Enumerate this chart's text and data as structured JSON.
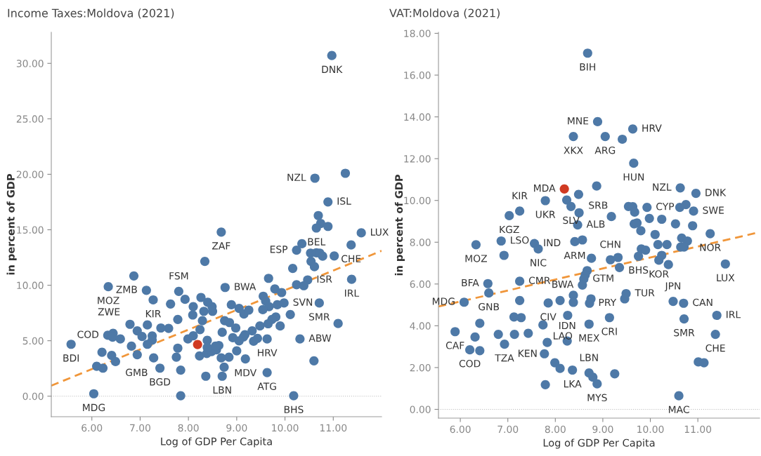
{
  "chart_data": [
    {
      "type": "scatter",
      "title": "Income Taxes:Moldova (2021)",
      "xlabel": "Log of GDP Per Capita",
      "ylabel": "in percent of GDP",
      "xlim": [
        5.16,
        12.0
      ],
      "ylim": [
        -1.85,
        32.8
      ],
      "xticks": [
        {
          "value": 6,
          "label": "6.00"
        },
        {
          "value": 7,
          "label": "7.00"
        },
        {
          "value": 8,
          "label": "8.00"
        },
        {
          "value": 9,
          "label": "9.00"
        },
        {
          "value": 10,
          "label": "10.00"
        },
        {
          "value": 11,
          "label": "11.00"
        }
      ],
      "yticks": [
        {
          "value": 0,
          "label": "0.00"
        },
        {
          "value": 5,
          "label": "5.00"
        },
        {
          "value": 10,
          "label": "10.00"
        },
        {
          "value": 15,
          "label": "15.00"
        },
        {
          "value": 20,
          "label": "20.00"
        },
        {
          "value": 25,
          "label": "25.00"
        },
        {
          "value": 30,
          "label": "30.00"
        }
      ],
      "grid": false,
      "marker": "circle",
      "ref_lines": [
        {
          "axis": "y",
          "value": 0,
          "color": "#bbbbbb",
          "line_style": "dotted"
        }
      ],
      "series": [
        {
          "color": "#4e79a7",
          "x": [
            10.97,
            10.62,
            11.25,
            10.89,
            10.69,
            10.74,
            10.89,
            10.65,
            11.58,
            8.68,
            8.34,
            10.35,
            10.24,
            11.37,
            11.02,
            10.53,
            10.65,
            10.72,
            10.78,
            10.54,
            10.61,
            10.16,
            9.66,
            10.47,
            10.24,
            10.39,
            11.38,
            9.79,
            9.93,
            9.55,
            9.6,
            9.67,
            9.54,
            9.84,
            9.98,
            10.71,
            10.11,
            9.81,
            9.73,
            9.65,
            9.9,
            11.1,
            9.48,
            9.32,
            9.17,
            9.14,
            8.92,
            9.05,
            9.43,
            9.35,
            9.63,
            10.31,
            10.6,
            9.63,
            10.18,
            9.18,
            9.0,
            8.84,
            8.68,
            8.74,
            8.7,
            8.36,
            7.84,
            7.84,
            7.41,
            7.28,
            7.75,
            7.78,
            8.23,
            8.38,
            8.48,
            8.58,
            8.63,
            8.56,
            8.39,
            8.39,
            7.99,
            8.1,
            8.24,
            8.7,
            8.98,
            8.75,
            8.85,
            8.29,
            8.09,
            8.1,
            8.32,
            8.5,
            8.49,
            8.4,
            8.26,
            8.89,
            9.05,
            9.15,
            9.25,
            8.76,
            7.93,
            7.8,
            7.63,
            7.78,
            7.59,
            7.43,
            7.27,
            7.13,
            6.87,
            6.34,
            6.79,
            6.94,
            7.04,
            7.15,
            7.25,
            7.25,
            7.15,
            6.82,
            6.94,
            6.59,
            6.44,
            6.33,
            6.43,
            6.21,
            6.41,
            6.49,
            6.23,
            6.1,
            6.04,
            5.57
          ],
          "values": [
            30.7,
            19.65,
            20.09,
            17.51,
            16.28,
            15.57,
            15.3,
            15.16,
            14.72,
            14.79,
            12.15,
            13.74,
            13.16,
            13.63,
            12.64,
            12.9,
            12.92,
            12.9,
            12.62,
            12.15,
            11.67,
            11.52,
            10.62,
            10.48,
            10.04,
            9.96,
            10.53,
            9.67,
            9.34,
            9.01,
            8.57,
            8.07,
            7.8,
            8.24,
            8.4,
            8.4,
            7.36,
            7.14,
            6.92,
            6.53,
            6.33,
            6.55,
            6.33,
            5.89,
            5.54,
            5.34,
            5.27,
            4.99,
            5.21,
            4.95,
            5.16,
            5.16,
            3.19,
            2.13,
            0.04,
            3.36,
            4.09,
            3.52,
            3.45,
            2.62,
            1.8,
            1.8,
            0.04,
            2.35,
            2.53,
            3.45,
            3.52,
            4.33,
            3.63,
            3.85,
            4.02,
            4.18,
            4.57,
            4.51,
            5.03,
            4.4,
            5.16,
            5.45,
            6.0,
            5.76,
            6.15,
            6.81,
            6.64,
            6.81,
            7.32,
            8.07,
            7.65,
            7.65,
            8.07,
            8.46,
            8.9,
            8.24,
            7.91,
            7.41,
            7.76,
            9.8,
            8.73,
            9.45,
            8.31,
            6.92,
            6.11,
            6.15,
            8.68,
            9.54,
            10.84,
            9.87,
            6.48,
            5.89,
            5.38,
            6.42,
            5.43,
            5.05,
            4.68,
            4.51,
            3.74,
            5.16,
            5.67,
            5.49,
            5.32,
            3.96,
            3.67,
            3.12,
            2.53,
            2.7,
            0.22,
            4.68
          ]
        },
        {
          "color": "#d03a22",
          "x": [
            8.19
          ],
          "values": [
            4.66
          ]
        },
        {
          "type": "line",
          "color": "#f0963a",
          "line_style": "dashed",
          "marker": "none",
          "x": [
            5.16,
            12.0
          ],
          "values": [
            0.95,
            13.1
          ]
        }
      ],
      "annotations": [
        {
          "text": "DNK",
          "x": 10.97,
          "y": 30.7
        },
        {
          "text": "NZL",
          "x": 10.62,
          "y": 19.65
        },
        {
          "text": "ISL",
          "x": 10.89,
          "y": 17.51
        },
        {
          "text": "LUX",
          "x": 11.58,
          "y": 14.72
        },
        {
          "text": "BEL",
          "x": 10.65,
          "y": 15.16
        },
        {
          "text": "ZAF",
          "x": 8.68,
          "y": 14.79
        },
        {
          "text": "ESP",
          "x": 10.24,
          "y": 13.16
        },
        {
          "text": "CHE",
          "x": 11.37,
          "y": 13.63
        },
        {
          "text": "ISR",
          "x": 10.47,
          "y": 10.48
        },
        {
          "text": "IRL",
          "x": 11.38,
          "y": 10.53
        },
        {
          "text": "SVN",
          "x": 9.98,
          "y": 8.4
        },
        {
          "text": "SMR",
          "x": 10.71,
          "y": 8.4
        },
        {
          "text": "ABW",
          "x": 10.31,
          "y": 5.16
        },
        {
          "text": "HRV",
          "x": 9.63,
          "y": 5.16
        },
        {
          "text": "BHS",
          "x": 10.18,
          "y": 0.04
        },
        {
          "text": "ATG",
          "x": 9.63,
          "y": 2.13
        },
        {
          "text": "MDV",
          "x": 9.18,
          "y": 3.36
        },
        {
          "text": "LBN",
          "x": 8.7,
          "y": 1.8
        },
        {
          "text": "BWA",
          "x": 8.76,
          "y": 9.8
        },
        {
          "text": "FSM",
          "x": 7.8,
          "y": 9.45
        },
        {
          "text": "KIR",
          "x": 7.27,
          "y": 8.68
        },
        {
          "text": "ZMB",
          "x": 7.13,
          "y": 9.54
        },
        {
          "text": "MOZ",
          "x": 6.34,
          "y": 9.87
        },
        {
          "text": "ZWE",
          "x": 6.79,
          "y": 6.48
        },
        {
          "text": "COD",
          "x": 6.33,
          "y": 5.49
        },
        {
          "text": "BDI",
          "x": 5.57,
          "y": 4.68
        },
        {
          "text": "MDG",
          "x": 6.04,
          "y": 0.22
        },
        {
          "text": "GMB",
          "x": 6.49,
          "y": 3.12
        },
        {
          "text": "BGD",
          "x": 7.41,
          "y": 2.53
        }
      ]
    },
    {
      "type": "scatter",
      "title": "VAT:Moldova (2021)",
      "xlabel": "Log of GDP Per Capita",
      "ylabel": "in percent of GDP",
      "xlim": [
        5.54,
        12.3
      ],
      "ylim": [
        -0.42,
        18.05
      ],
      "xticks": [
        {
          "value": 6,
          "label": "6.00"
        },
        {
          "value": 7,
          "label": "7.00"
        },
        {
          "value": 8,
          "label": "8.00"
        },
        {
          "value": 9,
          "label": "9.00"
        },
        {
          "value": 10,
          "label": "10.00"
        },
        {
          "value": 11,
          "label": "11.00"
        }
      ],
      "yticks": [
        {
          "value": 0,
          "label": "0.00"
        },
        {
          "value": 2,
          "label": "2.00"
        },
        {
          "value": 4,
          "label": "4.00"
        },
        {
          "value": 6,
          "label": "6.00"
        },
        {
          "value": 8,
          "label": "8.00"
        },
        {
          "value": 10,
          "label": "10.00"
        },
        {
          "value": 12,
          "label": "12.00"
        },
        {
          "value": 14,
          "label": "14.00"
        },
        {
          "value": 16,
          "label": "16.00"
        },
        {
          "value": 18,
          "label": "18.00"
        }
      ],
      "grid": false,
      "marker": "circle",
      "ref_lines": [
        {
          "axis": "y",
          "value": 0,
          "color": "#bbbbbb",
          "line_style": "dotted"
        }
      ],
      "series": [
        {
          "color": "#4e79a7",
          "x": [
            8.68,
            8.89,
            9.63,
            8.38,
            9.05,
            9.41,
            9.65,
            8.87,
            8.49,
            8.24,
            7.79,
            8.33,
            8.5,
            7.25,
            7.03,
            8.47,
            9.18,
            9.54,
            9.63,
            9.67,
            9.93,
            9.98,
            10.24,
            10.63,
            10.96,
            10.75,
            10.62,
            10.91,
            10.53,
            10.89,
            9.66,
            9.72,
            11.26,
            9.8,
            10.1,
            10.16,
            10.35,
            10.66,
            10.78,
            10.64,
            10.71,
            9.81,
            9.9,
            9.75,
            10.24,
            10.18,
            10.38,
            11.58,
            8.57,
            8.41,
            8.76,
            9.16,
            9.32,
            9.35,
            8.67,
            8.63,
            8.6,
            8.57,
            8.38,
            8.38,
            8.1,
            7.85,
            8.75,
            8.72,
            9.49,
            9.46,
            10.48,
            10.7,
            10.71,
            11.4,
            11.37,
            11.01,
            11.13,
            10.6,
            9.14,
            8.71,
            8.26,
            8.25,
            7.74,
            7.83,
            7.77,
            7.99,
            8.1,
            8.36,
            7.79,
            8.71,
            8.79,
            8.88,
            9.25,
            7.43,
            7.14,
            6.8,
            6.93,
            7.28,
            7.13,
            7.25,
            7.25,
            6.58,
            6.6,
            6.08,
            6.41,
            5.89,
            6.31,
            6.2,
            6.41,
            6.33,
            6.86,
            6.92,
            7.56,
            7.64
          ],
          "values": [
            17.05,
            13.77,
            13.42,
            13.06,
            13.06,
            12.93,
            11.78,
            10.69,
            10.29,
            10.02,
            9.99,
            9.71,
            9.41,
            9.49,
            9.27,
            8.83,
            9.23,
            9.71,
            9.7,
            9.44,
            9.67,
            9.14,
            9.1,
            10.6,
            10.34,
            9.8,
            9.67,
            9.49,
            8.88,
            8.79,
            8.88,
            8.92,
            8.41,
            8.55,
            8.37,
            7.89,
            7.89,
            8.2,
            8.06,
            7.77,
            7.77,
            7.68,
            7.62,
            7.33,
            7.37,
            7.14,
            6.93,
            6.96,
            8.11,
            8.03,
            7.23,
            7.16,
            7.27,
            6.79,
            6.64,
            6.44,
            6.24,
            5.95,
            5.46,
            5.12,
            5.21,
            5.09,
            5.29,
            5.08,
            5.54,
            5.29,
            5.17,
            5.08,
            4.33,
            4.5,
            3.59,
            2.27,
            2.23,
            0.65,
            4.39,
            4.08,
            4.5,
            3.27,
            4.04,
            3.2,
            2.66,
            2.23,
            1.96,
            1.88,
            1.18,
            1.74,
            1.54,
            1.22,
            1.7,
            3.64,
            3.59,
            3.59,
            3.12,
            4.39,
            4.42,
            5.21,
            6.13,
            6.02,
            5.57,
            5.13,
            4.12,
            3.72,
            3.46,
            2.85,
            2.81,
            7.88,
            8.06,
            7.37,
            7.94,
            7.68
          ]
        },
        {
          "color": "#d03a22",
          "x": [
            8.19
          ],
          "values": [
            10.55
          ]
        },
        {
          "type": "line",
          "color": "#f0963a",
          "line_style": "dashed",
          "marker": "none",
          "x": [
            5.54,
            12.3
          ],
          "values": [
            4.92,
            8.48
          ]
        }
      ],
      "annotations": [
        {
          "text": "BIH",
          "x": 8.68,
          "y": 17.05
        },
        {
          "text": "MNE",
          "x": 8.89,
          "y": 13.77
        },
        {
          "text": "HRV",
          "x": 9.63,
          "y": 13.42
        },
        {
          "text": "XKX",
          "x": 8.38,
          "y": 13.06
        },
        {
          "text": "ARG",
          "x": 9.05,
          "y": 13.06
        },
        {
          "text": "HUN",
          "x": 9.65,
          "y": 11.78
        },
        {
          "text": "MDA",
          "x": 8.19,
          "y": 10.55
        },
        {
          "text": "SRB",
          "x": 8.49,
          "y": 10.29
        },
        {
          "text": "NZL",
          "x": 10.63,
          "y": 10.6
        },
        {
          "text": "DNK",
          "x": 10.96,
          "y": 10.34
        },
        {
          "text": "CYP",
          "x": 9.93,
          "y": 9.67
        },
        {
          "text": "SWE",
          "x": 10.91,
          "y": 9.49
        },
        {
          "text": "KGZ",
          "x": 7.03,
          "y": 9.27
        },
        {
          "text": "UKR",
          "x": 7.79,
          "y": 9.99
        },
        {
          "text": "SLV",
          "x": 8.33,
          "y": 9.71
        },
        {
          "text": "ALB",
          "x": 8.47,
          "y": 8.83
        },
        {
          "text": "KIR",
          "x": 7.25,
          "y": 9.49
        },
        {
          "text": "LSO",
          "x": 6.86,
          "y": 8.06
        },
        {
          "text": "IND",
          "x": 7.56,
          "y": 7.94
        },
        {
          "text": "MOZ",
          "x": 6.33,
          "y": 7.88
        },
        {
          "text": "NIC",
          "x": 7.64,
          "y": 7.68
        },
        {
          "text": "CHN",
          "x": 9.16,
          "y": 7.16
        },
        {
          "text": "ARM",
          "x": 8.41,
          "y": 8.03
        },
        {
          "text": "NOR",
          "x": 11.26,
          "y": 8.41
        },
        {
          "text": "LUX",
          "x": 11.58,
          "y": 6.96
        },
        {
          "text": "BHS",
          "x": 9.75,
          "y": 7.33
        },
        {
          "text": "KOR",
          "x": 10.18,
          "y": 7.14
        },
        {
          "text": "BFA",
          "x": 6.58,
          "y": 6.02
        },
        {
          "text": "CMR",
          "x": 7.25,
          "y": 6.13
        },
        {
          "text": "GTM",
          "x": 8.6,
          "y": 6.24
        },
        {
          "text": "BWA",
          "x": 8.57,
          "y": 5.95
        },
        {
          "text": "TUR",
          "x": 9.49,
          "y": 5.54
        },
        {
          "text": "JPN",
          "x": 10.48,
          "y": 5.17
        },
        {
          "text": "CAN",
          "x": 10.7,
          "y": 5.08
        },
        {
          "text": "PRY",
          "x": 8.72,
          "y": 5.08
        },
        {
          "text": "CRI",
          "x": 9.14,
          "y": 4.39
        },
        {
          "text": "IRL",
          "x": 11.4,
          "y": 4.5
        },
        {
          "text": "GNB",
          "x": 6.6,
          "y": 5.57
        },
        {
          "text": "MDG",
          "x": 6.08,
          "y": 5.13
        },
        {
          "text": "CIV",
          "x": 7.85,
          "y": 5.09
        },
        {
          "text": "LAO",
          "x": 7.74,
          "y": 4.04
        },
        {
          "text": "MEX",
          "x": 8.71,
          "y": 4.08
        },
        {
          "text": "SMR",
          "x": 10.71,
          "y": 4.33
        },
        {
          "text": "CHE",
          "x": 11.37,
          "y": 3.59
        },
        {
          "text": "CAF",
          "x": 5.89,
          "y": 3.72
        },
        {
          "text": "KEN",
          "x": 7.83,
          "y": 3.2
        },
        {
          "text": "IDN",
          "x": 8.25,
          "y": 3.27
        },
        {
          "text": "TZA",
          "x": 6.93,
          "y": 3.12
        },
        {
          "text": "COD",
          "x": 6.2,
          "y": 2.85
        },
        {
          "text": "LBN",
          "x": 8.71,
          "y": 1.74
        },
        {
          "text": "LKA",
          "x": 8.36,
          "y": 1.88
        },
        {
          "text": "MYS",
          "x": 8.88,
          "y": 1.22
        },
        {
          "text": "MAC",
          "x": 10.6,
          "y": 0.65
        }
      ]
    }
  ]
}
